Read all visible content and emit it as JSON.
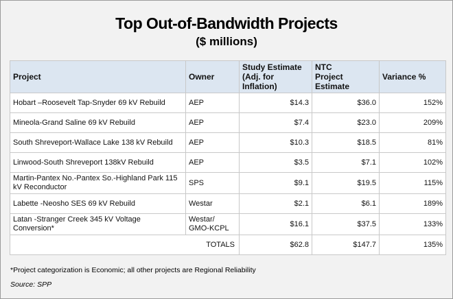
{
  "header": {
    "title": "Top Out-of-Bandwidth Projects",
    "subtitle": "($ millions)"
  },
  "table": {
    "columns": [
      "Project",
      "Owner",
      "Study Estimate\n(Adj. for Inflation)",
      "NTC\nProject Estimate",
      "Variance %"
    ],
    "rows": [
      [
        "Hobart –Roosevelt Tap-Snyder 69 kV Rebuild",
        "AEP",
        "$14.3",
        "$36.0",
        "152%"
      ],
      [
        "Mineola-Grand Saline 69 kV Rebuild",
        "AEP",
        "$7.4",
        "$23.0",
        "209%"
      ],
      [
        "South Shreveport-Wallace Lake 138 kV Rebuild",
        "AEP",
        "$10.3",
        "$18.5",
        "81%"
      ],
      [
        "Linwood-South Shreveport 138kV Rebuild",
        "AEP",
        "$3.5",
        "$7.1",
        "102%"
      ],
      [
        "Martin-Pantex No.-Pantex So.-Highland Park 115 kV Reconductor",
        "SPS",
        "$9.1",
        "$19.5",
        "115%"
      ],
      [
        "Labette -Neosho SES 69 kV Rebuild",
        "Westar",
        "$2.1",
        "$6.1",
        "189%"
      ],
      [
        "Latan -Stranger Creek 345 kV Voltage Conversion*",
        "Westar/ GMO-KCPL",
        "$16.1",
        "$37.5",
        "133%"
      ]
    ],
    "total": [
      "TOTALS",
      "$62.8",
      "$147.7",
      "135%"
    ]
  },
  "footnote": "*Project categorization is Economic; all other projects are Regional Reliability",
  "source": "Source: SPP"
}
